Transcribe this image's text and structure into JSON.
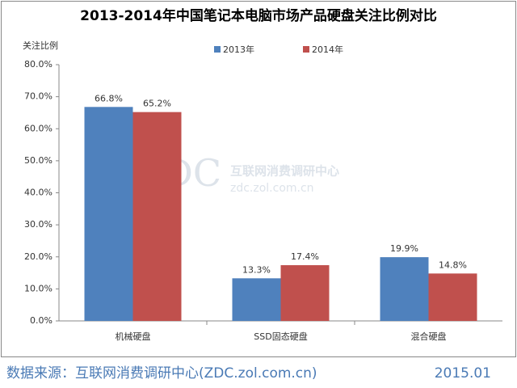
{
  "chart_data": {
    "type": "bar",
    "title": "2013-2014年中国笔记本电脑市场产品硬盘关注比例对比",
    "y_label": "关注比例",
    "categories": [
      "机械硬盘",
      "SSD固态硬盘",
      "混合硬盘"
    ],
    "series": [
      {
        "name": "2013年",
        "color": "#4f81bd",
        "values": [
          66.8,
          13.3,
          19.9
        ],
        "value_labels": [
          "66.8%",
          "13.3%",
          "19.9%"
        ]
      },
      {
        "name": "2014年",
        "color": "#c0504d",
        "values": [
          65.2,
          17.4,
          14.8
        ],
        "value_labels": [
          "65.2%",
          "17.4%",
          "14.8%"
        ]
      }
    ],
    "ylim": [
      0,
      80
    ],
    "yticks": [
      {
        "value": 0,
        "label": "0.0%"
      },
      {
        "value": 10,
        "label": "10.0%"
      },
      {
        "value": 20,
        "label": "20.0%"
      },
      {
        "value": 30,
        "label": "30.0%"
      },
      {
        "value": 40,
        "label": "40.0%"
      },
      {
        "value": 50,
        "label": "50.0%"
      },
      {
        "value": 60,
        "label": "60.0%"
      },
      {
        "value": 70,
        "label": "70.0%"
      },
      {
        "value": 80,
        "label": "80.0%"
      }
    ],
    "grid": false,
    "legend": "top"
  },
  "watermark": {
    "logo": "ZDC",
    "name": "互联网消费调研中心",
    "url": "zdc.zol.com.cn"
  },
  "footer": {
    "source": "数据来源：互联网消费调研中心(ZDC.zol.com.cn)",
    "date": "2015.01"
  }
}
